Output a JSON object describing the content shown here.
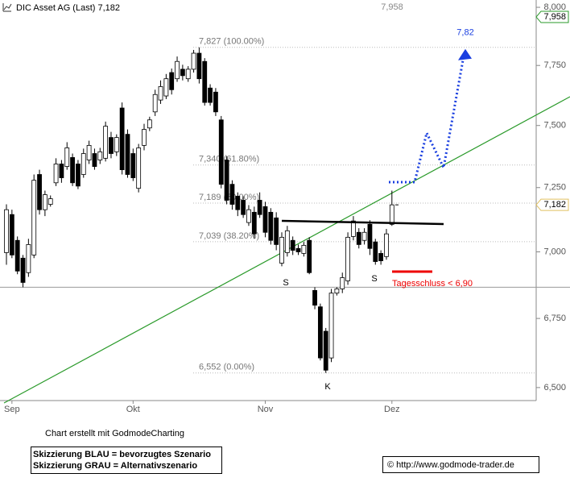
{
  "chart_data": {
    "type": "candlestick",
    "title": "DIC Asset AG (Last) 7,182",
    "log": true,
    "ylim": [
      6.454,
      8.032
    ],
    "yticks": [
      {
        "value": 8.0,
        "label": "8,000"
      },
      {
        "value": 7.75,
        "label": "7,750"
      },
      {
        "value": 7.5,
        "label": "7,500"
      },
      {
        "value": 7.25,
        "label": "7,250"
      },
      {
        "value": 7.0,
        "label": "7,000"
      },
      {
        "value": 6.75,
        "label": "6,750"
      },
      {
        "value": 6.5,
        "label": "6,500"
      }
    ],
    "up_color": "#ffffff",
    "down_color": "#000000",
    "categories": [
      null,
      "Sep",
      null,
      null,
      null,
      null,
      null,
      null,
      null,
      null,
      null,
      null,
      null,
      null,
      null,
      null,
      null,
      null,
      null,
      null,
      null,
      null,
      null,
      "Okt",
      null,
      null,
      null,
      null,
      null,
      null,
      null,
      null,
      null,
      null,
      null,
      null,
      null,
      null,
      null,
      null,
      null,
      null,
      null,
      null,
      null,
      null,
      null,
      "Nov",
      null,
      null,
      null,
      null,
      null,
      null,
      null,
      null,
      null,
      null,
      null,
      null,
      null,
      null,
      null,
      null,
      null,
      null,
      null,
      null,
      null,
      null,
      "Dez"
    ],
    "open": [
      6.997,
      7.144,
      7.044,
      6.976,
      6.921,
      6.988,
      7.302,
      7.163,
      7.184,
      7.269,
      7.344,
      7.334,
      7.37,
      7.344,
      7.302,
      7.36,
      7.386,
      7.36,
      7.367,
      7.451,
      7.393,
      7.572,
      7.464,
      7.386,
      7.247,
      7.419,
      7.49,
      7.556,
      7.605,
      7.622,
      7.72,
      7.694,
      7.734,
      7.694,
      7.734,
      7.802,
      7.767,
      7.655,
      7.638,
      7.523,
      7.36,
      7.263,
      7.216,
      7.2,
      7.113,
      7.153,
      7.2,
      7.175,
      7.153,
      7.131,
      6.957,
      6.997,
      7.044,
      7.013,
      6.994,
      7.044,
      6.854,
      6.793,
      6.703,
      6.606,
      6.844,
      6.86,
      6.89,
      7.059,
      7.075,
      7.044,
      7.106,
      7.038,
      6.994,
      6.982,
      7.106
    ],
    "high": [
      7.184,
      7.163,
      7.059,
      6.988,
      7.05,
      7.302,
      7.321,
      7.238,
      7.219,
      7.367,
      7.36,
      7.432,
      7.386,
      7.36,
      7.406,
      7.438,
      7.406,
      7.409,
      7.516,
      7.474,
      7.464,
      7.595,
      7.484,
      7.406,
      7.425,
      7.507,
      7.536,
      7.648,
      7.687,
      7.714,
      7.737,
      7.788,
      7.753,
      7.747,
      7.816,
      7.827,
      7.781,
      7.671,
      7.655,
      7.539,
      7.376,
      7.279,
      7.231,
      7.216,
      7.181,
      7.175,
      7.231,
      7.194,
      7.169,
      7.153,
      7.075,
      7.1,
      7.059,
      7.028,
      7.038,
      7.056,
      6.866,
      6.805,
      6.715,
      6.86,
      6.866,
      6.921,
      7.075,
      7.138,
      7.091,
      7.091,
      7.122,
      7.05,
      7.006,
      7.088,
      7.238
    ],
    "low": [
      6.951,
      6.976,
      6.915,
      6.866,
      6.905,
      6.976,
      7.144,
      7.138,
      7.175,
      7.256,
      7.269,
      7.321,
      7.256,
      7.244,
      7.289,
      7.344,
      7.321,
      7.344,
      7.354,
      7.367,
      7.376,
      7.302,
      7.289,
      7.276,
      7.231,
      7.399,
      7.477,
      7.539,
      7.589,
      7.609,
      7.628,
      7.681,
      7.687,
      7.681,
      7.72,
      7.674,
      7.582,
      7.582,
      7.539,
      7.247,
      7.184,
      7.163,
      7.138,
      7.131,
      7.1,
      7.05,
      7.131,
      7.056,
      7.028,
      7.006,
      6.945,
      6.982,
      6.988,
      6.988,
      6.982,
      6.915,
      6.784,
      6.597,
      6.552,
      6.591,
      6.835,
      6.844,
      6.875,
      7.044,
      7.013,
      7.028,
      6.988,
      6.951,
      6.951,
      6.97,
      7.1
    ],
    "close": [
      7.163,
      6.988,
      6.927,
      6.884,
      7.028,
      7.279,
      7.163,
      7.222,
      7.206,
      7.344,
      7.289,
      7.409,
      7.269,
      7.256,
      7.386,
      7.419,
      7.334,
      7.393,
      7.497,
      7.386,
      7.451,
      7.321,
      7.302,
      7.289,
      7.409,
      7.484,
      7.523,
      7.628,
      7.661,
      7.694,
      7.648,
      7.767,
      7.707,
      7.734,
      7.802,
      7.694,
      7.595,
      7.595,
      7.556,
      7.263,
      7.2,
      7.184,
      7.163,
      7.144,
      7.163,
      7.069,
      7.144,
      7.075,
      7.044,
      7.028,
      7.056,
      7.081,
      7.006,
      7.0,
      7.025,
      6.921,
      6.799,
      6.606,
      6.562,
      6.844,
      6.86,
      6.902,
      7.056,
      7.119,
      7.028,
      7.075,
      7.013,
      6.963,
      6.966,
      7.069,
      7.182
    ],
    "fib_levels": [
      {
        "value": 7.827,
        "label": "7,827 (100.00%)"
      },
      {
        "value": 7.34,
        "label": "7,340 (61.80%)"
      },
      {
        "value": 7.189,
        "label": "7,189 (50.00%)"
      },
      {
        "value": 7.039,
        "label": "7,039 (38.20%)"
      },
      {
        "value": 6.552,
        "label": "6,552 (0.00%)"
      }
    ],
    "marker": {
      "value": 7.958,
      "label": "7,958"
    },
    "last": {
      "value": 7.182,
      "label": "7,182"
    },
    "support_level": 6.866,
    "target": {
      "value": 7.82,
      "label": "7,82"
    },
    "pattern_labels": [
      "S",
      "K",
      "S"
    ],
    "stop_note": "Tagesschluss < 6,90"
  },
  "footer": {
    "credit": "Chart erstellt mit GodmodeCharting",
    "legend": [
      "Skizzierung BLAU = bevorzugtes Szenario",
      "Skizzierung GRAU = Alternativszenario"
    ],
    "copyright": "© http://www.godmode-trader.de"
  }
}
